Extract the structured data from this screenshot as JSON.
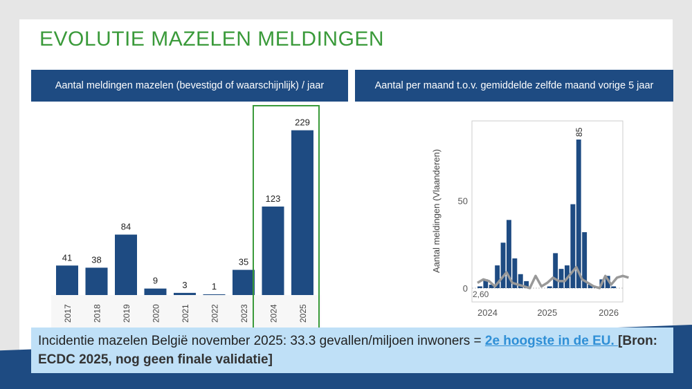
{
  "title": "EVOLUTIE MAZELEN MELDINGEN",
  "left_header": "Aantal meldingen mazelen (bevestigd of waarschijnlijk) / jaar",
  "right_header": "Aantal per maand t.o.v. gemiddelde zelfde maand vorige 5 jaar",
  "callout": {
    "text": "Incidentie mazelen België november 2025: 33.3 gevallen/miljoen inwoners = ",
    "link": " 2e hoogste in de EU. ",
    "source": "[Bron: ECDC 2025, nog geen finale validatie]"
  },
  "colors": {
    "bar": "#1e4b82",
    "line": "#999999",
    "highlight": "#3a9a3a",
    "title": "#3a9a3a"
  },
  "chart_data": [
    {
      "type": "bar",
      "categories": [
        "2017",
        "2018",
        "2019",
        "2020",
        "2021",
        "2022",
        "2023",
        "2024",
        "2025"
      ],
      "values": [
        41,
        38,
        84,
        9,
        3,
        1,
        35,
        123,
        229
      ],
      "highlighted": [
        "2024",
        "2025"
      ],
      "ylim": [
        0,
        240
      ]
    },
    {
      "type": "bar+line",
      "ylabel": "Aantal meldingen (Vlaanderen)",
      "yticks": [
        0,
        50
      ],
      "xticks": [
        "2024",
        "2025",
        "2026"
      ],
      "ylim": [
        -5,
        100
      ],
      "bar_values": [
        1,
        5,
        2,
        13,
        26,
        39,
        17,
        8,
        4,
        0,
        0,
        0,
        1,
        20,
        11,
        13,
        48,
        85,
        32,
        2,
        1,
        5,
        7,
        1
      ],
      "line_values": [
        3,
        5,
        4,
        1,
        5,
        9,
        3,
        2,
        1,
        0,
        7,
        1,
        3,
        6,
        4,
        4,
        8,
        12,
        5,
        3,
        1,
        0,
        7,
        2,
        6,
        7,
        6
      ],
      "data_labels": [
        "85",
        "2,60"
      ]
    }
  ]
}
